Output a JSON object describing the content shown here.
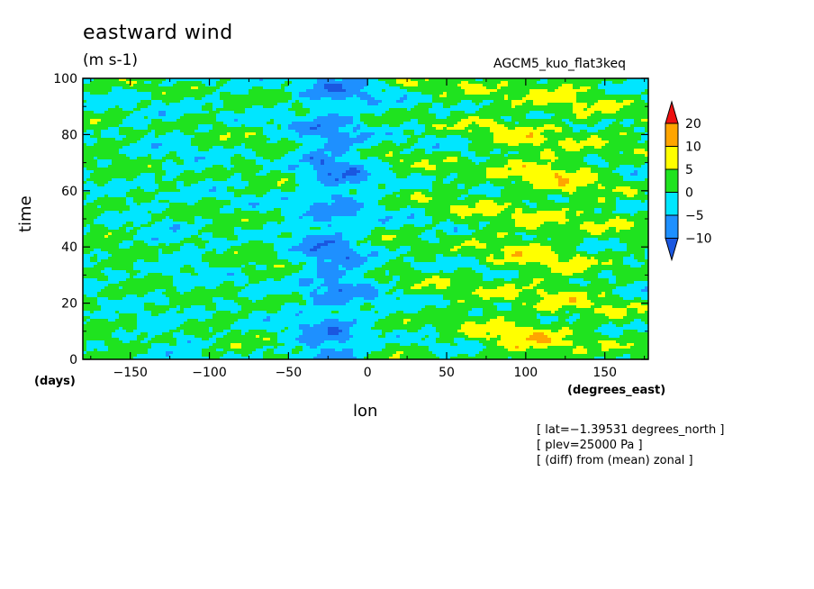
{
  "chart_data": {
    "type": "heatmap",
    "title": "eastward wind",
    "units_label": "(m s-1)",
    "run_name": "AGCM5_kuo_flat3keq",
    "xlabel": "lon",
    "ylabel": "time",
    "x_unit_label": "(degrees_east)",
    "y_unit_label": "(days)",
    "xlim": [
      -180,
      177.5
    ],
    "ylim": [
      0,
      100
    ],
    "x_ticks": [
      -150,
      -100,
      -50,
      0,
      50,
      100,
      150
    ],
    "x_tick_labels": [
      "−150",
      "−100",
      "−50",
      "0",
      "50",
      "100",
      "150"
    ],
    "y_ticks": [
      0,
      20,
      40,
      60,
      80,
      100
    ],
    "y_tick_labels": [
      "0",
      "20",
      "40",
      "60",
      "80",
      "100"
    ],
    "colorbar": {
      "levels": [
        -10,
        -5,
        0,
        5,
        10,
        20
      ],
      "labels": [
        "−10",
        "−5",
        "0",
        "5",
        "10",
        "20"
      ],
      "colors": [
        "#1a57e0",
        "#1e90ff",
        "#00e6ff",
        "#1fe31f",
        "#ffff00",
        "#ffa500",
        "#ee1111"
      ],
      "extend": "both"
    },
    "field_description": "Hovmoller of eastward wind anomaly (diff from zonal mean); negative band near lon -40 to 0, positive patches near lon 60 to 170",
    "grid": false
  },
  "annotations": [
    "[ lat=−1.39531 degrees_north ]",
    "[ plev=25000 Pa ]",
    "[ (diff) from (mean) zonal ]"
  ]
}
